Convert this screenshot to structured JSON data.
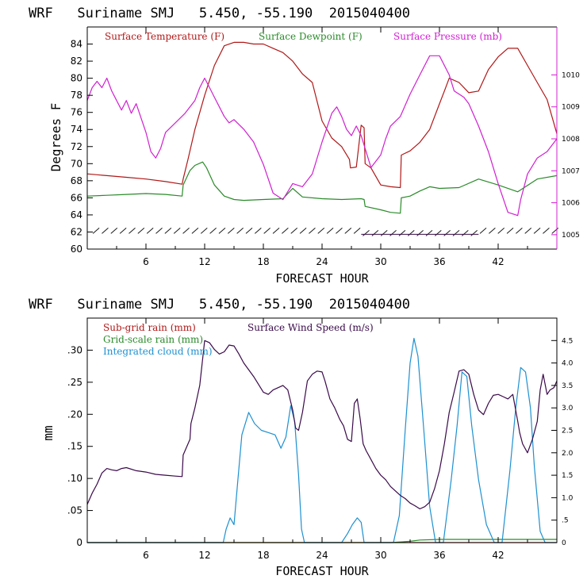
{
  "chart_data": [
    {
      "type": "line",
      "title": "WRF   Suriname SMJ   5.450, -55.190  2015040400",
      "xlabel": "FORECAST HOUR",
      "ylabel": "Degrees F",
      "xlim": [
        0,
        48
      ],
      "xticks": [
        "6",
        "12",
        "18",
        "24",
        "30",
        "36",
        "42"
      ],
      "ylim": [
        60,
        86
      ],
      "yticks": [
        "60",
        "62",
        "64",
        "66",
        "68",
        "70",
        "72",
        "74",
        "76",
        "78",
        "80",
        "82",
        "84"
      ],
      "y2lim": [
        1004.55,
        1011.5
      ],
      "y2ticks": [
        "1005",
        "1006",
        "1007",
        "1008",
        "1009",
        "1010"
      ],
      "colors": {
        "temp": "#b01818",
        "dew": "#2a8a2a",
        "pres": "#d020d0",
        "barb": "#1a1a1a",
        "frame_right": "#d020d0"
      },
      "series": [
        {
          "name": "Surface Temperature (F)",
          "axis": "left",
          "x": [
            0,
            2,
            4,
            6,
            8,
            9.7,
            9.8,
            10.3,
            11,
            12,
            13,
            14,
            15,
            16,
            17,
            18,
            19,
            20,
            21,
            22,
            23,
            24,
            25,
            26,
            26.8,
            26.9,
            27.5,
            28,
            28.3,
            28.4,
            29,
            30,
            31,
            32,
            32.1,
            33,
            34,
            35,
            36,
            36.5,
            37,
            38,
            39,
            40,
            41,
            42,
            43,
            44,
            45,
            46,
            47,
            48
          ],
          "y": [
            68.8,
            68.6,
            68.4,
            68.2,
            67.9,
            67.6,
            68.2,
            70.5,
            74,
            78,
            81.5,
            83.8,
            84.2,
            84.2,
            84,
            84,
            83.5,
            83,
            82,
            80.5,
            79.5,
            75,
            73,
            72,
            70.5,
            69.5,
            69.6,
            74.5,
            74.2,
            70,
            69.5,
            67.5,
            67.3,
            67.2,
            71,
            71.5,
            72.5,
            74,
            77,
            78.5,
            80,
            79.5,
            78.3,
            78.5,
            81,
            82.5,
            83.5,
            83.5,
            81.5,
            79.5,
            77.5,
            73.5
          ]
        },
        {
          "name": "Surface Dewpoint (F)",
          "axis": "left",
          "x": [
            0,
            2,
            4,
            6,
            8,
            9.7,
            9.8,
            10.5,
            11,
            11.8,
            12.2,
            13,
            14,
            15,
            16,
            18,
            20,
            21,
            22,
            24,
            26,
            28,
            28.3,
            28.4,
            30,
            31,
            32,
            32.1,
            33,
            34,
            35,
            36,
            38,
            40,
            42,
            44,
            46,
            48
          ],
          "y": [
            66.2,
            66.3,
            66.4,
            66.5,
            66.4,
            66.2,
            67.5,
            69.2,
            69.8,
            70.2,
            69.5,
            67.5,
            66.2,
            65.8,
            65.7,
            65.8,
            65.9,
            67.1,
            66.1,
            65.9,
            65.8,
            65.9,
            65.8,
            65,
            64.6,
            64.3,
            64.2,
            66,
            66.2,
            66.8,
            67.3,
            67.1,
            67.2,
            68.2,
            67.5,
            66.7,
            68.2,
            68.6
          ]
        },
        {
          "name": "Surface Pressure (mb)",
          "axis": "right",
          "x": [
            0,
            0.5,
            1,
            1.5,
            2,
            2.5,
            3,
            3.5,
            4,
            4.5,
            5,
            6,
            6.5,
            7,
            7.5,
            8,
            9,
            10,
            11,
            11.5,
            12,
            12.5,
            13,
            13.5,
            14,
            14.5,
            15,
            16,
            17,
            18,
            19,
            20,
            21,
            22,
            23,
            24,
            25,
            25.5,
            26,
            26.5,
            27,
            27.5,
            28,
            28.5,
            29,
            30,
            30.5,
            31,
            32,
            33,
            34,
            35,
            36,
            37,
            37.5,
            38,
            38.5,
            39,
            40,
            41,
            42,
            43,
            44,
            44.3,
            45,
            46,
            47,
            48
          ],
          "y": [
            1009.2,
            1009.6,
            1009.8,
            1009.6,
            1009.9,
            1009.5,
            1009.2,
            1008.9,
            1009.2,
            1008.8,
            1009.1,
            1008.2,
            1007.6,
            1007.4,
            1007.7,
            1008.2,
            1008.5,
            1008.8,
            1009.2,
            1009.6,
            1009.9,
            1009.6,
            1009.3,
            1009.0,
            1008.7,
            1008.5,
            1008.6,
            1008.3,
            1007.9,
            1007.2,
            1006.3,
            1006.1,
            1006.6,
            1006.5,
            1006.9,
            1007.9,
            1008.8,
            1009.0,
            1008.7,
            1008.3,
            1008.1,
            1008.4,
            1008.1,
            1007.6,
            1007.1,
            1007.5,
            1008.0,
            1008.4,
            1008.7,
            1009.4,
            1010.0,
            1010.6,
            1010.6,
            1010.0,
            1009.5,
            1009.4,
            1009.3,
            1009.1,
            1008.4,
            1007.6,
            1006.6,
            1005.7,
            1005.6,
            1006.1,
            1006.9,
            1007.4,
            1007.6,
            1008.0
          ]
        }
      ],
      "annotations": [
        "Surface Temperature (F)",
        "Surface Dewpoint (F)",
        "Surface Pressure (mb)"
      ],
      "legend": "top-left",
      "grid": false
    },
    {
      "type": "line",
      "title": "WRF   Suriname SMJ   5.450, -55.190  2015040400",
      "xlabel": "FORECAST HOUR",
      "ylabel": "mm",
      "xlim": [
        0,
        48
      ],
      "xticks": [
        "6",
        "12",
        "18",
        "24",
        "30",
        "36",
        "42"
      ],
      "ylim": [
        0,
        0.35
      ],
      "yticks": [
        "0",
        ".05",
        ".10",
        ".15",
        ".20",
        ".25",
        ".30"
      ],
      "y2lim": [
        0,
        5.0
      ],
      "y2ticks": [
        "0",
        ".5",
        "1.0",
        "1.5",
        "2.0",
        "2.5",
        "3.0",
        "3.5",
        "4.0",
        "4.5"
      ],
      "colors": {
        "subgrid": "#b01818",
        "grid": "#2a8a2a",
        "cloud": "#1e90d0",
        "wind": "#3a0a4a"
      },
      "series": [
        {
          "name": "Sub-grid rain (mm)",
          "axis": "left",
          "x": [
            0,
            48
          ],
          "y": [
            0,
            0
          ]
        },
        {
          "name": "Grid-scale rain (mm)",
          "axis": "left",
          "x": [
            0,
            31,
            33,
            34,
            36,
            40,
            44,
            46,
            48
          ],
          "y": [
            0,
            0,
            0.002,
            0.004,
            0.005,
            0.005,
            0.005,
            0.005,
            0.005
          ]
        },
        {
          "name": "Integrated cloud (mm)",
          "axis": "right",
          "x": [
            0,
            13.9,
            14.2,
            14.6,
            15,
            15.4,
            15.8,
            16.5,
            17.1,
            17.8,
            18.5,
            19.2,
            19.8,
            20.3,
            20.8,
            21.2,
            21.6,
            21.9,
            22.2,
            26,
            26.6,
            27.1,
            27.6,
            28,
            28.3,
            31.3,
            31.9,
            32.5,
            33,
            33.4,
            33.8,
            34.4,
            35,
            35.6,
            36.4,
            37.2,
            37.8,
            38.3,
            38.8,
            39.3,
            40,
            40.8,
            41.6,
            42.4,
            43.2,
            43.8,
            44.3,
            44.8,
            45.3,
            45.7,
            46.3,
            46.8,
            48
          ],
          "y": [
            0,
            0,
            0.3,
            0.55,
            0.4,
            1.4,
            2.4,
            2.9,
            2.65,
            2.5,
            2.45,
            2.4,
            2.1,
            2.35,
            3.05,
            2.7,
            1.5,
            0.3,
            0,
            0,
            0.2,
            0.4,
            0.55,
            0.45,
            0,
            0,
            0.6,
            2.5,
            4.0,
            4.55,
            4.15,
            2.5,
            0.8,
            0,
            0,
            1.4,
            2.6,
            3.8,
            3.7,
            2.6,
            1.4,
            0.4,
            0,
            0,
            1.6,
            3.0,
            3.9,
            3.8,
            3.0,
            1.7,
            0.25,
            0,
            0
          ]
        },
        {
          "name": "Surface Wind Speed (m/s)",
          "axis": "right",
          "x": [
            0,
            0.5,
            1,
            1.5,
            2,
            2.5,
            3,
            3.5,
            4,
            5,
            6,
            7,
            8,
            9,
            9.7,
            9.8,
            10.5,
            10.6,
            11,
            11.5,
            12,
            12.5,
            13,
            13.5,
            14,
            14.5,
            15,
            15.5,
            16,
            17,
            18,
            18.5,
            19,
            20,
            20.5,
            21,
            21.3,
            21.6,
            22,
            22.5,
            23,
            23.5,
            24,
            24.3,
            24.8,
            25.3,
            25.8,
            26.2,
            26.6,
            27,
            27.3,
            27.6,
            27.9,
            28.2,
            28.5,
            29,
            29.5,
            30,
            30.5,
            31,
            31.5,
            32,
            32.5,
            33,
            33.5,
            34,
            34.5,
            35,
            35.5,
            36,
            36.5,
            37,
            37.5,
            38,
            38.5,
            39,
            39.5,
            40,
            40.5,
            41,
            41.5,
            42,
            42.5,
            43,
            43.5,
            44,
            44.2,
            44.5,
            45,
            45.5,
            46,
            46.3,
            46.6,
            47,
            47.3,
            47.7,
            48
          ],
          "y": [
            0.85,
            1.1,
            1.3,
            1.55,
            1.65,
            1.62,
            1.6,
            1.65,
            1.67,
            1.6,
            1.57,
            1.52,
            1.5,
            1.48,
            1.47,
            1.95,
            2.3,
            2.65,
            3.0,
            3.5,
            4.5,
            4.45,
            4.3,
            4.2,
            4.25,
            4.4,
            4.38,
            4.2,
            4.0,
            3.7,
            3.35,
            3.3,
            3.4,
            3.5,
            3.4,
            2.95,
            2.55,
            2.5,
            2.9,
            3.6,
            3.75,
            3.82,
            3.8,
            3.6,
            3.2,
            3.0,
            2.75,
            2.6,
            2.3,
            2.25,
            3.1,
            3.2,
            2.75,
            2.2,
            2.05,
            1.85,
            1.65,
            1.5,
            1.4,
            1.25,
            1.15,
            1.05,
            0.98,
            0.88,
            0.82,
            0.75,
            0.8,
            0.9,
            1.2,
            1.6,
            2.2,
            2.9,
            3.35,
            3.82,
            3.85,
            3.75,
            3.3,
            2.95,
            2.85,
            3.1,
            3.28,
            3.3,
            3.25,
            3.2,
            3.3,
            2.7,
            2.45,
            2.2,
            2.0,
            2.3,
            2.7,
            3.4,
            3.75,
            3.3,
            3.4,
            3.45,
            3.6
          ]
        }
      ],
      "annotations": [
        "Sub-grid rain (mm)",
        "Grid-scale rain (mm)",
        "Integrated cloud (mm)",
        "Surface Wind Speed (m/s)"
      ],
      "legend": "top-left",
      "grid": false
    }
  ]
}
